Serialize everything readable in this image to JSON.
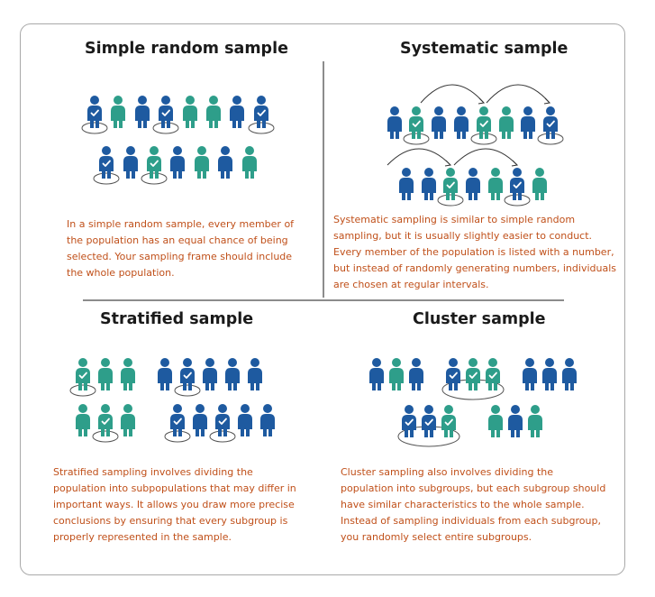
{
  "colors": {
    "blue": "#1e5aa0",
    "teal": "#2e9e8a",
    "text": "#c0501a",
    "title": "#1a1a1a",
    "divider": "#8c8c8c"
  },
  "icons": {
    "person": "person-icon",
    "selected": "check-icon",
    "arrow": "curved-arrow-icon"
  },
  "panels": {
    "simple": {
      "title": "Simple random sample",
      "description": "In a simple random sample, every member of the population has an equal chance of being selected. Your sampling frame should include the whole population."
    },
    "systematic": {
      "title": "Systematic sample",
      "description": "Systematic sampling is similar to simple random sampling, but it is usually slightly easier to conduct. Every member of the population is listed with a number, but instead of randomly generating numbers, individuals are chosen at regular intervals."
    },
    "stratified": {
      "title": "Stratified sample",
      "description": "Stratified sampling involves dividing the population into subpopulations that may differ in important ways. It allows you draw more precise conclusions by ensuring that every subgroup is properly represented in the sample."
    },
    "cluster": {
      "title": "Cluster sample",
      "description": "Cluster sampling also involves dividing the population into subgroups, but each subgroup should have similar characteristics to the whole sample. Instead of sampling individuals from each subgroup, you randomly select entire subgroups."
    }
  }
}
